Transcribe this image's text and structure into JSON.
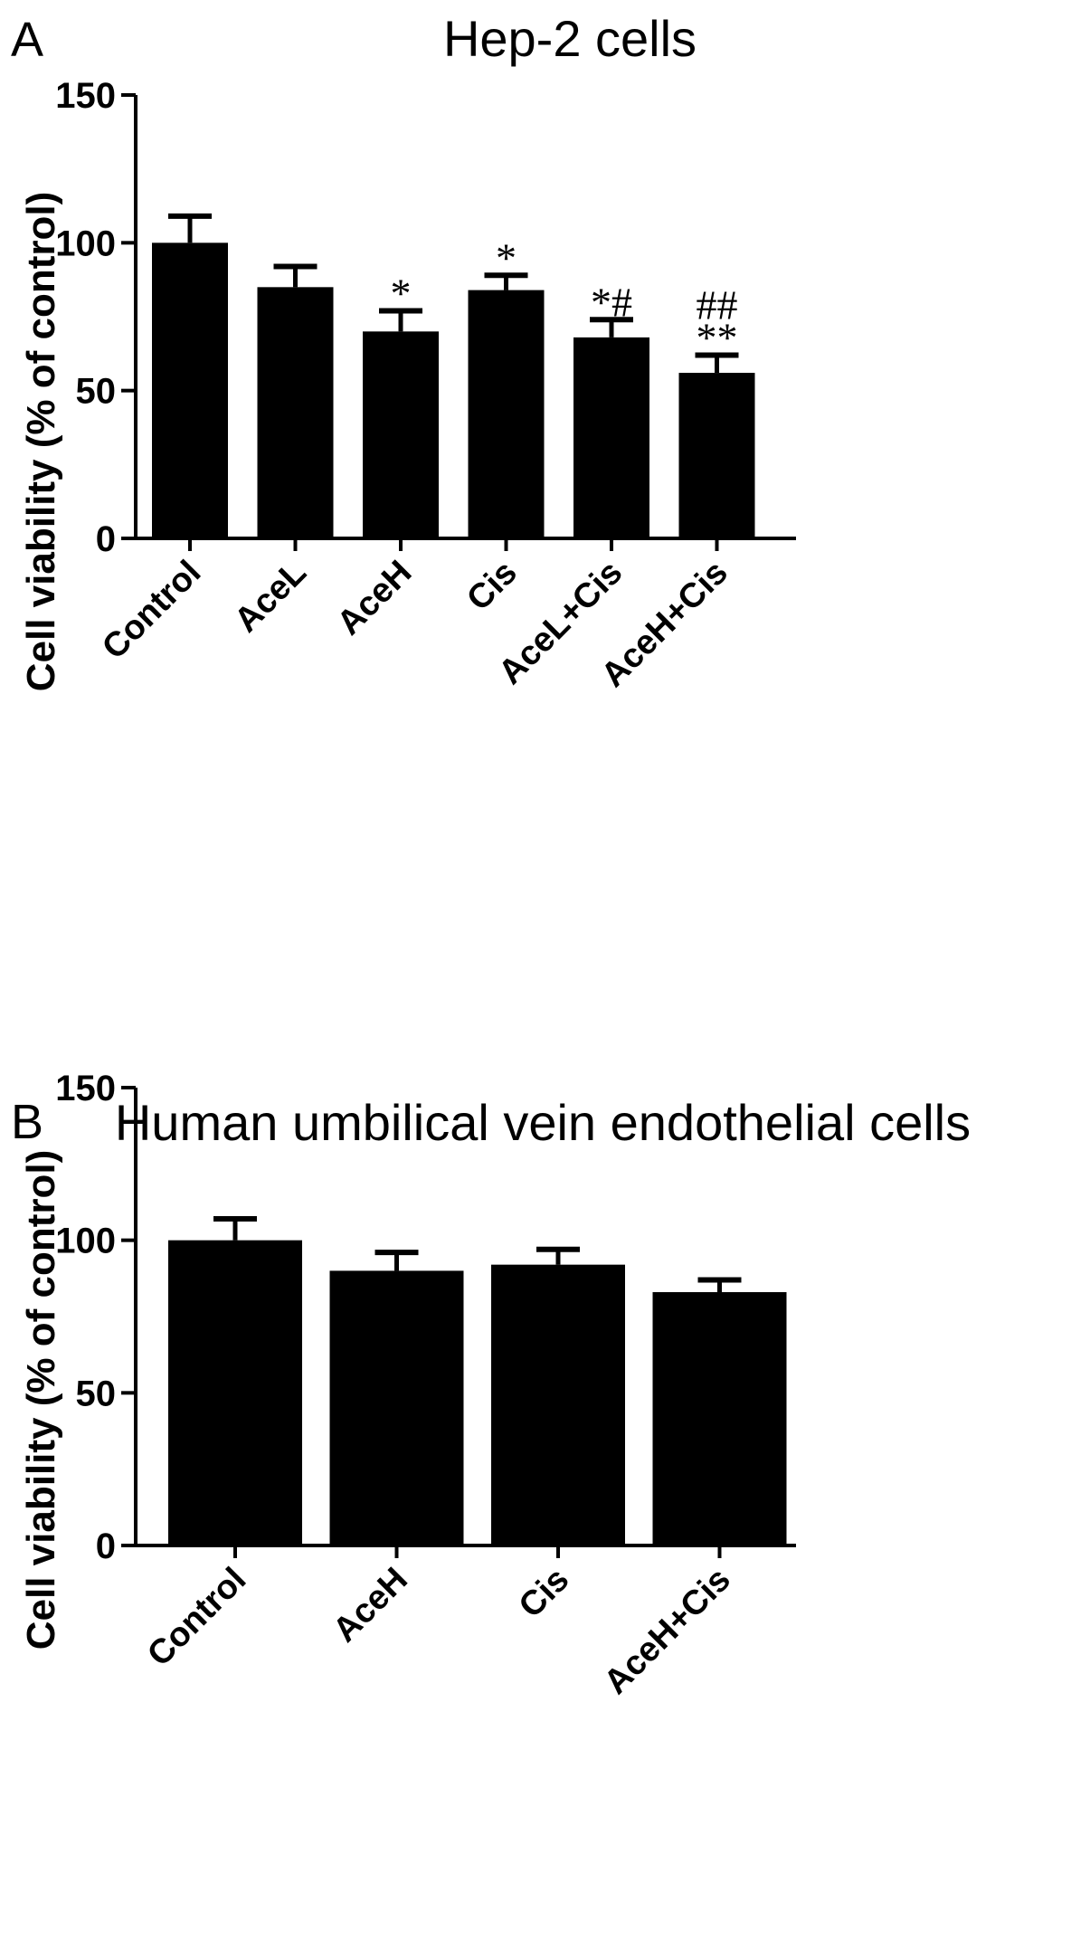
{
  "chart_data": [
    {
      "type": "bar",
      "panel": "A",
      "title": "Hep-2 cells",
      "ylabel": "Cell viability (% of control)",
      "xlabel": "",
      "ylim": [
        0,
        150
      ],
      "yticks": [
        0,
        50,
        100,
        150
      ],
      "categories": [
        "Control",
        "AceL",
        "AceH",
        "Cis",
        "AceL+Cis",
        "AceH+Cis"
      ],
      "values": [
        100,
        85,
        70,
        84,
        68,
        56
      ],
      "errors": [
        9,
        7,
        7,
        5,
        6,
        6
      ],
      "annotations": [
        "",
        "",
        "*",
        "*",
        "*#",
        "**"
      ],
      "annotations_upper": [
        "",
        "",
        "",
        "",
        "",
        "##"
      ],
      "bar_color": "#000000",
      "grid": false,
      "legend": "none"
    },
    {
      "type": "bar",
      "panel": "B",
      "title": "Human umbilical vein endothelial cells",
      "ylabel": "Cell viability (% of control)",
      "xlabel": "",
      "ylim": [
        0,
        150
      ],
      "yticks": [
        0,
        50,
        100,
        150
      ],
      "categories": [
        "Control",
        "AceH",
        "Cis",
        "AceH+Cis"
      ],
      "values": [
        100,
        90,
        92,
        83
      ],
      "errors": [
        7,
        6,
        5,
        4
      ],
      "annotations": [
        "",
        "",
        "",
        ""
      ],
      "annotations_upper": [
        "",
        "",
        "",
        ""
      ],
      "bar_color": "#000000",
      "grid": false,
      "legend": "none"
    }
  ]
}
